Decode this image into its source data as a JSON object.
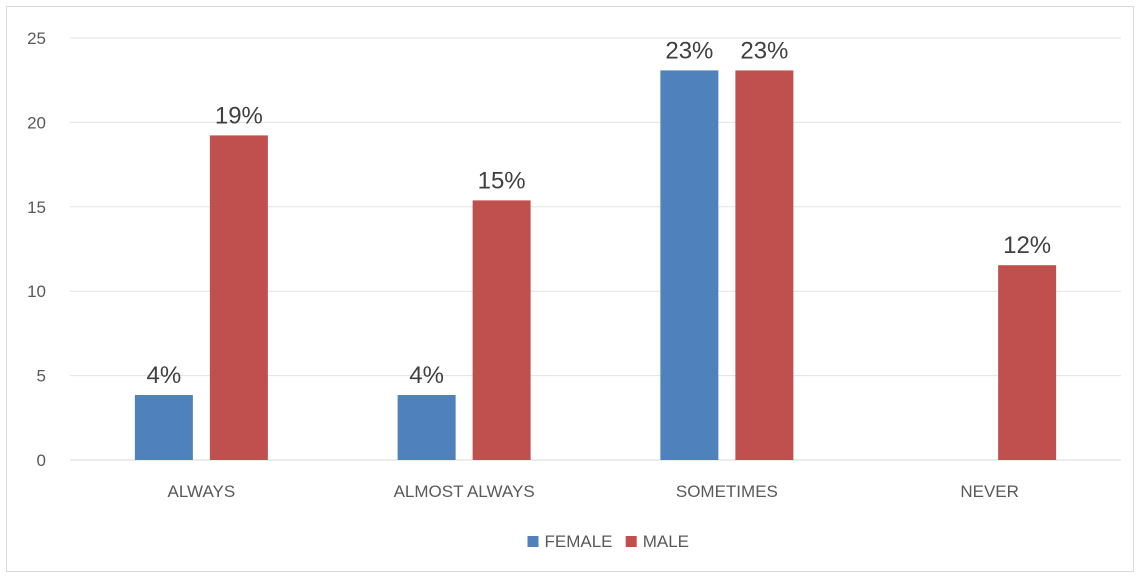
{
  "chart_data": {
    "type": "bar",
    "categories": [
      "ALWAYS",
      "ALMOST ALWAYS",
      "SOMETIMES",
      "NEVER"
    ],
    "series": [
      {
        "name": "FEMALE",
        "color": "#4f81bd",
        "values": [
          3.85,
          3.85,
          23.08,
          0
        ],
        "labels": [
          "4%",
          "4%",
          "23%",
          ""
        ]
      },
      {
        "name": "MALE",
        "color": "#c0504d",
        "values": [
          19.23,
          15.38,
          23.08,
          11.54
        ],
        "labels": [
          "19%",
          "15%",
          "23%",
          "12%"
        ]
      }
    ],
    "yticks": [
      0,
      5,
      10,
      15,
      20,
      25
    ],
    "ylim": [
      0,
      25
    ],
    "grid": true,
    "legend_position": "bottom",
    "title": "",
    "xlabel": "",
    "ylabel": ""
  }
}
